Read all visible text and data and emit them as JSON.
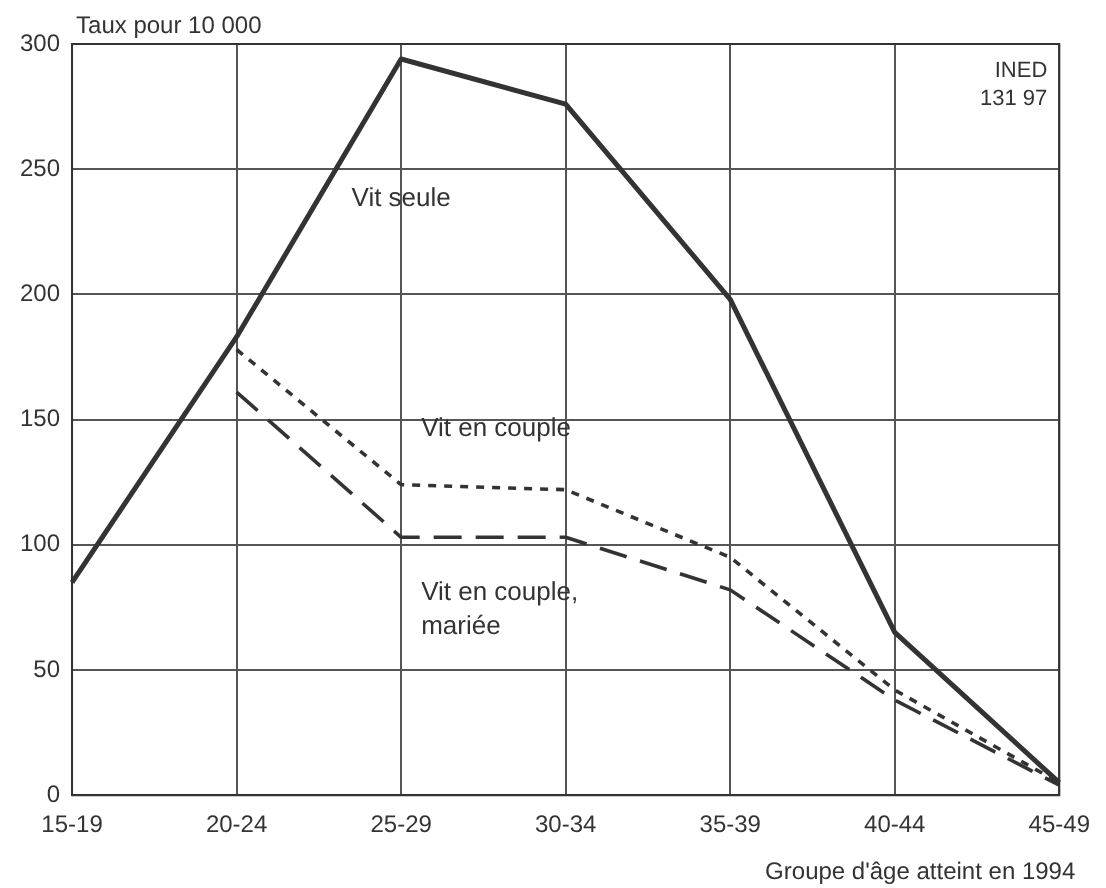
{
  "chart_data": {
    "type": "line",
    "ylabel": "Taux pour 10 000",
    "xlabel": "Groupe d'âge atteint en 1994",
    "annotations": [
      "INED",
      "131 97"
    ],
    "categories": [
      "15-19",
      "20-24",
      "25-29",
      "30-34",
      "35-39",
      "40-44",
      "45-49"
    ],
    "ylim": [
      0,
      300
    ],
    "yticks": [
      0,
      50,
      100,
      150,
      200,
      250,
      300
    ],
    "grid": true,
    "legend": false,
    "marker": "none",
    "series": [
      {
        "name": "Vit seule",
        "color": "#333333",
        "line_style": "solid",
        "values": [
          85,
          183,
          294,
          276,
          198,
          65,
          5
        ]
      },
      {
        "name": "Vit en couple",
        "color": "#333333",
        "line_style": "dotted",
        "values": [
          null,
          178,
          124,
          122,
          95,
          42,
          5
        ]
      },
      {
        "name": "Vit en couple, mariée",
        "color": "#333333",
        "line_style": "dashed",
        "values": [
          null,
          161,
          103,
          103,
          82,
          38,
          4
        ]
      }
    ]
  }
}
